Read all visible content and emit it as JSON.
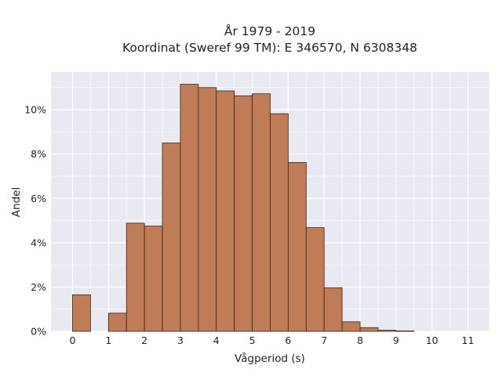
{
  "chart_data": {
    "type": "bar",
    "title_line1": "År 1979 - 2019",
    "title_line2": "Koordinat (Sweref 99 TM): E 346570, N 6308348",
    "xlabel": "Vågperiod (s)",
    "ylabel": "Andel",
    "xlim": [
      -0.6,
      11.6
    ],
    "ylim": [
      0,
      11.7
    ],
    "x_ticks": [
      "0",
      "1",
      "2",
      "3",
      "4",
      "5",
      "6",
      "7",
      "8",
      "9",
      "10",
      "11"
    ],
    "y_ticks": [
      "0%",
      "2%",
      "4%",
      "6%",
      "8%",
      "10%"
    ],
    "bin_width": 0.5,
    "bins": [
      {
        "x0": 0.0,
        "value": 1.65
      },
      {
        "x0": 0.5,
        "value": 0.0
      },
      {
        "x0": 1.0,
        "value": 0.82
      },
      {
        "x0": 1.5,
        "value": 4.88
      },
      {
        "x0": 2.0,
        "value": 4.75
      },
      {
        "x0": 2.5,
        "value": 8.5
      },
      {
        "x0": 3.0,
        "value": 11.15
      },
      {
        "x0": 3.5,
        "value": 11.0
      },
      {
        "x0": 4.0,
        "value": 10.85
      },
      {
        "x0": 4.5,
        "value": 10.63
      },
      {
        "x0": 5.0,
        "value": 10.72
      },
      {
        "x0": 5.5,
        "value": 9.82
      },
      {
        "x0": 6.0,
        "value": 7.62
      },
      {
        "x0": 6.5,
        "value": 4.68
      },
      {
        "x0": 7.0,
        "value": 1.97
      },
      {
        "x0": 7.5,
        "value": 0.43
      },
      {
        "x0": 8.0,
        "value": 0.17
      },
      {
        "x0": 8.5,
        "value": 0.05
      },
      {
        "x0": 9.0,
        "value": 0.02
      }
    ],
    "grid": true,
    "colors": {
      "bar_fill": "#c07c56",
      "bar_edge": "#3b2418",
      "plot_background": "#e9e9f1",
      "grid": "#ffffff"
    }
  }
}
